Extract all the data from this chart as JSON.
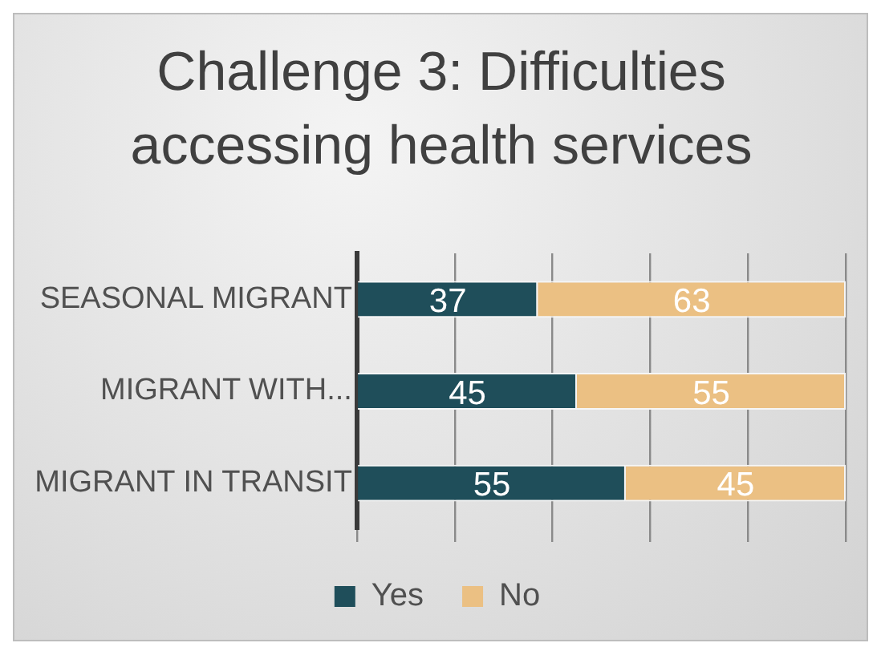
{
  "chart_data": {
    "type": "bar",
    "orientation": "horizontal",
    "stacked": true,
    "title": "Challenge 3: Difficulties accessing health services",
    "categories": [
      "SEASONAL MIGRANT",
      "MIGRANT WITH...",
      "MIGRANT IN TRANSIT"
    ],
    "series": [
      {
        "name": "Yes",
        "color": "#1f4e5a",
        "values": [
          37,
          45,
          55
        ]
      },
      {
        "name": "No",
        "color": "#ebc083",
        "values": [
          63,
          55,
          45
        ]
      }
    ],
    "xlim": [
      0,
      100
    ],
    "xticks": [
      {
        "value": 0,
        "label": null
      },
      {
        "value": 20,
        "label": null
      },
      {
        "value": 40,
        "label": null
      },
      {
        "value": 60,
        "label": null
      },
      {
        "value": 80,
        "label": null
      },
      {
        "value": 100,
        "label": null
      }
    ],
    "tick_labels": "y",
    "grid": "x",
    "legend": "bottom",
    "data_labels": true
  }
}
